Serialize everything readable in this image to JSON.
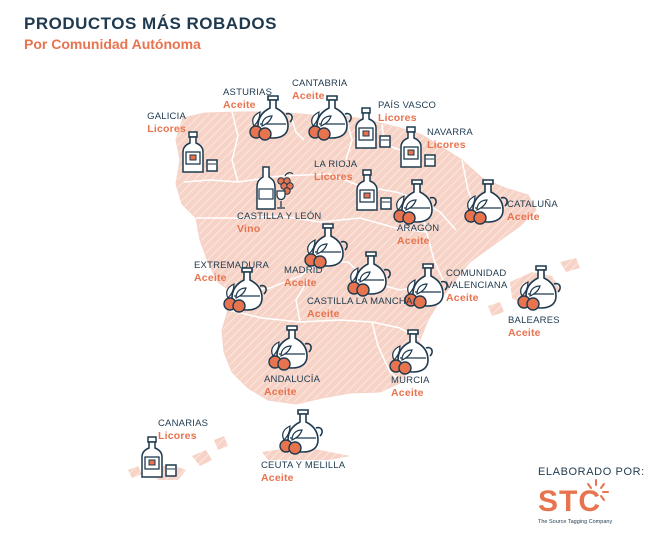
{
  "header": {
    "title": "PRODUCTOS MÁS ROBADOS",
    "subtitle": "Por Comunidad Autónoma"
  },
  "colors": {
    "map_fill": "#f6d3c6",
    "accent": "#e8734f",
    "text": "#1f3a4f",
    "icon_stroke": "#1f3a4f"
  },
  "regions": [
    {
      "name": "GALICIA",
      "product": "Licores",
      "icon": "liquor-bottle-icon"
    },
    {
      "name": "ASTURIAS",
      "product": "Aceite",
      "icon": "olive-oil-icon"
    },
    {
      "name": "CANTABRIA",
      "product": "Aceite",
      "icon": "olive-oil-icon"
    },
    {
      "name": "PAÍS VASCO",
      "product": "Licores",
      "icon": "liquor-bottle-icon"
    },
    {
      "name": "NAVARRA",
      "product": "Licores",
      "icon": "liquor-bottle-icon"
    },
    {
      "name": "LA RIOJA",
      "product": "Licores",
      "icon": "liquor-bottle-icon"
    },
    {
      "name": "CATALUÑA",
      "product": "Aceite",
      "icon": "olive-oil-icon"
    },
    {
      "name": "CASTILLA Y LEÓN",
      "product": "Vino",
      "icon": "wine-icon"
    },
    {
      "name": "ARAGÓN",
      "product": "Aceite",
      "icon": "olive-oil-icon"
    },
    {
      "name": "EXTREMADURA",
      "product": "Aceite",
      "icon": "olive-oil-icon"
    },
    {
      "name": "MADRID",
      "product": "Aceite",
      "icon": "olive-oil-icon"
    },
    {
      "name": "COMUNIDAD VALENCIANA",
      "product": "Aceite",
      "icon": "olive-oil-icon"
    },
    {
      "name": "CASTILLA LA MANCHA",
      "product": "Aceite",
      "icon": "olive-oil-icon"
    },
    {
      "name": "BALEARES",
      "product": "Aceite",
      "icon": "olive-oil-icon"
    },
    {
      "name": "ANDALUCÍA",
      "product": "Aceite",
      "icon": "olive-oil-icon"
    },
    {
      "name": "MURCIA",
      "product": "Aceite",
      "icon": "olive-oil-icon"
    },
    {
      "name": "CANARIAS",
      "product": "Licores",
      "icon": "liquor-bottle-icon"
    },
    {
      "name": "CEUTA Y MELILLA",
      "product": "Aceite",
      "icon": "olive-oil-icon"
    }
  ],
  "footer": {
    "credit": "ELABORADO POR:",
    "logo": "STC",
    "logo_tagline": "The Source Tagging Company"
  }
}
